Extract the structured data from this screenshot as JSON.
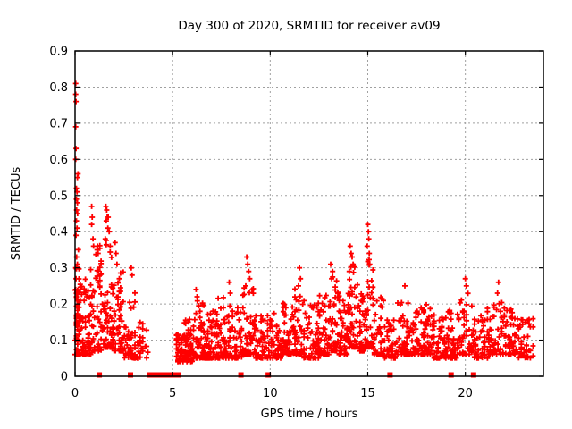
{
  "figure": {
    "background": "#ffffff",
    "border_color": "#000000",
    "grid_color": "#a0a0a0",
    "series_color": "#ff0000"
  },
  "chart_data": {
    "type": "scatter",
    "title": "Day 300 of 2020, SRMTID for receiver av09",
    "xlabel": "GPS time / hours",
    "ylabel": "SRMTID / TECUs",
    "xlim": [
      0,
      24
    ],
    "ylim": [
      0,
      0.9
    ],
    "xticks": [
      0,
      5,
      10,
      15,
      20
    ],
    "xtick_labels": [
      "0",
      "5",
      "10",
      "15",
      "20"
    ],
    "yticks": [
      0,
      0.1,
      0.2,
      0.3,
      0.4,
      0.5,
      0.6,
      0.7,
      0.8,
      0.9
    ],
    "ytick_labels": [
      "0",
      "0.1",
      "0.2",
      "0.3",
      "0.4",
      "0.5",
      "0.6",
      "0.7",
      "0.8",
      "0.9"
    ],
    "grid": "dotted gray at interior x ticks (5,10,15,20) and y ticks (0.1-0.8)",
    "legend": "none",
    "marker": {
      "shape": "plus",
      "color": "#ff0000",
      "size": 7
    },
    "zero_marker": {
      "shape": "filled-square",
      "color": "#ff0000",
      "size": 6
    },
    "outlier_points": [
      [
        0.03,
        0.81
      ],
      [
        0.03,
        0.78
      ],
      [
        0.05,
        0.76
      ],
      [
        0.03,
        0.69
      ],
      [
        0.05,
        0.63
      ],
      [
        0.03,
        0.6
      ],
      [
        0.15,
        0.56
      ],
      [
        0.12,
        0.55
      ],
      [
        0.07,
        0.52
      ],
      [
        0.1,
        0.51
      ],
      [
        0.07,
        0.49
      ],
      [
        0.12,
        0.48
      ],
      [
        0.08,
        0.46
      ],
      [
        0.13,
        0.45
      ],
      [
        0.07,
        0.43
      ],
      [
        0.1,
        0.41
      ],
      [
        0.05,
        0.39
      ],
      [
        0.17,
        0.35
      ],
      [
        0.08,
        0.33
      ],
      [
        0.12,
        0.31
      ],
      [
        0.03,
        0.3
      ],
      [
        0.05,
        0.27
      ],
      [
        0.03,
        0.24
      ],
      [
        0.07,
        0.22
      ],
      [
        0.85,
        0.47
      ],
      [
        0.88,
        0.44
      ],
      [
        0.85,
        0.42
      ],
      [
        0.92,
        0.38
      ],
      [
        0.95,
        0.36
      ],
      [
        1.15,
        0.36
      ],
      [
        1.18,
        0.34
      ],
      [
        1.58,
        0.47
      ],
      [
        1.62,
        0.46
      ],
      [
        1.65,
        0.44
      ],
      [
        1.6,
        0.43
      ],
      [
        1.7,
        0.44
      ],
      [
        1.68,
        0.41
      ],
      [
        1.75,
        0.4
      ],
      [
        1.55,
        0.38
      ],
      [
        1.8,
        0.36
      ],
      [
        2.05,
        0.37
      ],
      [
        2.1,
        0.34
      ],
      [
        2.15,
        0.31
      ],
      [
        2.88,
        0.3
      ],
      [
        2.92,
        0.28
      ],
      [
        6.2,
        0.24
      ],
      [
        6.25,
        0.22
      ],
      [
        7.9,
        0.26
      ],
      [
        7.95,
        0.23
      ],
      [
        8.8,
        0.33
      ],
      [
        8.85,
        0.31
      ],
      [
        8.9,
        0.29
      ],
      [
        8.95,
        0.27
      ],
      [
        8.75,
        0.25
      ],
      [
        11.5,
        0.3
      ],
      [
        11.55,
        0.27
      ],
      [
        11.45,
        0.25
      ],
      [
        13.1,
        0.31
      ],
      [
        13.2,
        0.29
      ],
      [
        13.15,
        0.27
      ],
      [
        14.1,
        0.36
      ],
      [
        14.15,
        0.34
      ],
      [
        14.2,
        0.33
      ],
      [
        14.25,
        0.31
      ],
      [
        14.05,
        0.29
      ],
      [
        15.0,
        0.42
      ],
      [
        15.03,
        0.4
      ],
      [
        15.05,
        0.38
      ],
      [
        14.97,
        0.36
      ],
      [
        15.08,
        0.34
      ],
      [
        15.1,
        0.31
      ],
      [
        16.9,
        0.25
      ],
      [
        20.0,
        0.27
      ],
      [
        20.05,
        0.25
      ],
      [
        21.7,
        0.26
      ],
      [
        21.65,
        0.23
      ]
    ],
    "zero_square_x": [
      1.24,
      2.84,
      3.82,
      3.92,
      4.02,
      4.12,
      4.22,
      4.32,
      4.42,
      4.52,
      4.66,
      4.89,
      5.15,
      5.27,
      8.5,
      9.9,
      16.14,
      19.27,
      20.42
    ],
    "density_clusters": [
      {
        "x0": 0.0,
        "x1": 0.45,
        "n": 60,
        "ymin": 0.06,
        "ymax": 0.3,
        "k": 2.4
      },
      {
        "x0": 0.0,
        "x1": 0.3,
        "n": 25,
        "ymin": 0.14,
        "ymax": 0.3,
        "k": 1.6
      },
      {
        "x0": 0.45,
        "x1": 0.95,
        "n": 50,
        "ymin": 0.06,
        "ymax": 0.3,
        "k": 2.4
      },
      {
        "x0": 0.95,
        "x1": 1.55,
        "n": 55,
        "ymin": 0.07,
        "ymax": 0.38,
        "k": 2.6
      },
      {
        "x0": 1.55,
        "x1": 2.0,
        "n": 55,
        "ymin": 0.08,
        "ymax": 0.38,
        "k": 2.6
      },
      {
        "x0": 2.0,
        "x1": 2.5,
        "n": 50,
        "ymin": 0.07,
        "ymax": 0.3,
        "k": 2.5
      },
      {
        "x0": 2.5,
        "x1": 3.1,
        "n": 50,
        "ymin": 0.05,
        "ymax": 0.26,
        "k": 2.6
      },
      {
        "x0": 3.1,
        "x1": 3.75,
        "n": 28,
        "ymin": 0.05,
        "ymax": 0.15,
        "k": 2.0
      },
      {
        "x0": 5.2,
        "x1": 5.6,
        "n": 45,
        "ymin": 0.04,
        "ymax": 0.12,
        "k": 1.8
      },
      {
        "x0": 5.6,
        "x1": 6.1,
        "n": 55,
        "ymin": 0.04,
        "ymax": 0.16,
        "k": 2.0
      },
      {
        "x0": 6.1,
        "x1": 6.65,
        "n": 55,
        "ymin": 0.05,
        "ymax": 0.21,
        "k": 2.3
      },
      {
        "x0": 6.65,
        "x1": 7.3,
        "n": 60,
        "ymin": 0.05,
        "ymax": 0.18,
        "k": 2.2
      },
      {
        "x0": 7.3,
        "x1": 8.0,
        "n": 60,
        "ymin": 0.05,
        "ymax": 0.22,
        "k": 2.4
      },
      {
        "x0": 8.0,
        "x1": 8.55,
        "n": 40,
        "ymin": 0.05,
        "ymax": 0.19,
        "k": 2.2
      },
      {
        "x0": 8.55,
        "x1": 9.15,
        "n": 50,
        "ymin": 0.06,
        "ymax": 0.26,
        "k": 2.4
      },
      {
        "x0": 9.15,
        "x1": 9.9,
        "n": 55,
        "ymin": 0.05,
        "ymax": 0.17,
        "k": 2.1
      },
      {
        "x0": 9.9,
        "x1": 10.6,
        "n": 50,
        "ymin": 0.05,
        "ymax": 0.19,
        "k": 2.2
      },
      {
        "x0": 10.6,
        "x1": 11.2,
        "n": 50,
        "ymin": 0.06,
        "ymax": 0.21,
        "k": 2.2
      },
      {
        "x0": 11.2,
        "x1": 11.75,
        "n": 50,
        "ymin": 0.06,
        "ymax": 0.25,
        "k": 2.4
      },
      {
        "x0": 11.75,
        "x1": 12.45,
        "n": 55,
        "ymin": 0.05,
        "ymax": 0.2,
        "k": 2.3
      },
      {
        "x0": 12.45,
        "x1": 13.0,
        "n": 50,
        "ymin": 0.06,
        "ymax": 0.23,
        "k": 2.3
      },
      {
        "x0": 13.0,
        "x1": 13.5,
        "n": 45,
        "ymin": 0.07,
        "ymax": 0.28,
        "k": 2.4
      },
      {
        "x0": 13.5,
        "x1": 13.95,
        "n": 45,
        "ymin": 0.06,
        "ymax": 0.23,
        "k": 2.3
      },
      {
        "x0": 13.95,
        "x1": 14.5,
        "n": 55,
        "ymin": 0.08,
        "ymax": 0.31,
        "k": 2.2
      },
      {
        "x0": 14.5,
        "x1": 14.9,
        "n": 40,
        "ymin": 0.07,
        "ymax": 0.26,
        "k": 2.3
      },
      {
        "x0": 14.9,
        "x1": 15.3,
        "n": 45,
        "ymin": 0.08,
        "ymax": 0.33,
        "k": 2.3
      },
      {
        "x0": 15.3,
        "x1": 15.85,
        "n": 40,
        "ymin": 0.06,
        "ymax": 0.22,
        "k": 2.4
      },
      {
        "x0": 15.85,
        "x1": 16.45,
        "n": 40,
        "ymin": 0.05,
        "ymax": 0.16,
        "k": 2.1
      },
      {
        "x0": 16.45,
        "x1": 17.15,
        "n": 50,
        "ymin": 0.06,
        "ymax": 0.22,
        "k": 2.4
      },
      {
        "x0": 17.15,
        "x1": 17.85,
        "n": 50,
        "ymin": 0.06,
        "ymax": 0.2,
        "k": 2.4
      },
      {
        "x0": 17.85,
        "x1": 18.35,
        "n": 45,
        "ymin": 0.06,
        "ymax": 0.21,
        "k": 2.4
      },
      {
        "x0": 18.35,
        "x1": 19.05,
        "n": 50,
        "ymin": 0.05,
        "ymax": 0.18,
        "k": 2.4
      },
      {
        "x0": 19.05,
        "x1": 19.65,
        "n": 45,
        "ymin": 0.05,
        "ymax": 0.19,
        "k": 2.3
      },
      {
        "x0": 19.65,
        "x1": 20.45,
        "n": 50,
        "ymin": 0.06,
        "ymax": 0.24,
        "k": 2.4
      },
      {
        "x0": 20.45,
        "x1": 21.2,
        "n": 50,
        "ymin": 0.05,
        "ymax": 0.19,
        "k": 2.3
      },
      {
        "x0": 21.2,
        "x1": 21.95,
        "n": 50,
        "ymin": 0.06,
        "ymax": 0.22,
        "k": 2.4
      },
      {
        "x0": 21.95,
        "x1": 22.7,
        "n": 50,
        "ymin": 0.06,
        "ymax": 0.19,
        "k": 2.3
      },
      {
        "x0": 22.7,
        "x1": 23.45,
        "n": 45,
        "ymin": 0.05,
        "ymax": 0.16,
        "k": 2.1
      }
    ]
  }
}
